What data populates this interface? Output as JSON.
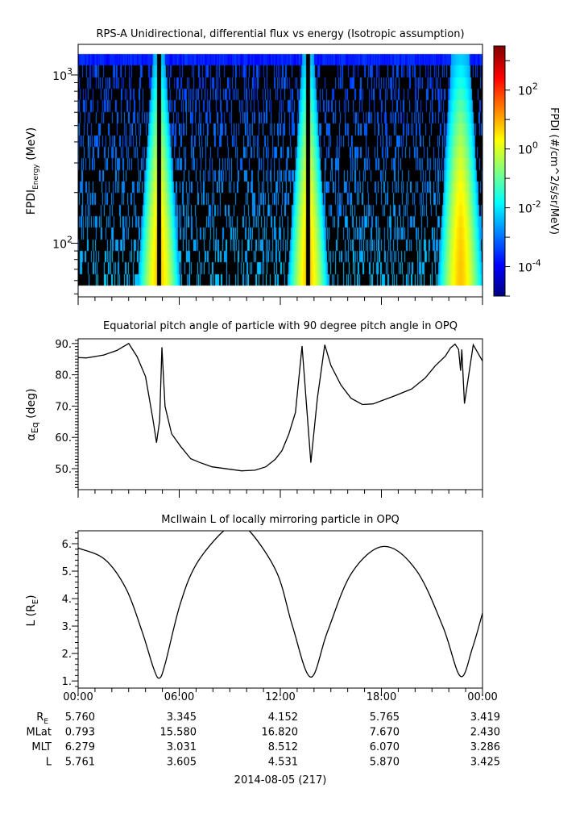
{
  "chart_data": [
    {
      "type": "heatmap",
      "title": "RPS-A Unidirectional, differential flux vs energy (Isotropic assumption)",
      "ylabel": "FPDI",
      "ylabel_sub": "Energy",
      "ylabel_unit": " (MeV)",
      "yscale": "log",
      "ylim": [
        48,
        1520
      ],
      "data_energy_range": [
        56,
        1330
      ],
      "energy_bins": 20,
      "yticks": [
        {
          "value": 1000,
          "base": "10",
          "exp": "3"
        },
        {
          "value": 100,
          "base": "10",
          "exp": "2"
        }
      ],
      "xlim_hours": [
        0,
        24
      ],
      "bands": [
        {
          "center_hours": 4.8,
          "gap": true,
          "halfwidth_hours": [
            0.35,
            1.25
          ],
          "peak_log_flux": 0.8
        },
        {
          "center_hours": 13.65,
          "gap": true,
          "halfwidth_hours": [
            0.35,
            1.2
          ],
          "peak_log_flux": 0.8
        },
        {
          "center_hours": 22.7,
          "gap": false,
          "halfwidth_hours": [
            0.55,
            1.35
          ],
          "peak_log_flux": 0.8
        }
      ],
      "background_log_flux": [
        -4.0,
        -2.4
      ],
      "colorbar": {
        "label": "FPDI (#/cm^2/s/sr/MeV)",
        "colormap": "jet",
        "log_range": [
          -5.0,
          3.5
        ],
        "ticks": [
          {
            "log": 2,
            "base": "10",
            "exp": "2"
          },
          {
            "log": 0,
            "base": "10",
            "exp": "0"
          },
          {
            "log": -2,
            "base": "10",
            "exp": "-2"
          },
          {
            "log": -4,
            "base": "10",
            "exp": "-4"
          }
        ]
      }
    },
    {
      "type": "line",
      "title": "Equatorial pitch angle of particle with 90 degree pitch angle in OPQ",
      "ylabel": "α",
      "ylabel_sub": "Eq",
      "ylabel_unit": " (deg)",
      "ylim": [
        43.3,
        91.5
      ],
      "yticks": [
        {
          "value": 90,
          "label": "90."
        },
        {
          "value": 80,
          "label": "80."
        },
        {
          "value": 70,
          "label": "70."
        },
        {
          "value": 60,
          "label": "60."
        },
        {
          "value": 50,
          "label": "50."
        }
      ],
      "x": [
        0,
        0.5,
        1.5,
        2.3,
        3.0,
        3.5,
        4.0,
        4.45,
        4.65,
        4.84,
        4.97,
        5.16,
        5.55,
        6.1,
        6.68,
        7.2,
        7.94,
        9.7,
        10.5,
        11.14,
        11.7,
        12.1,
        12.5,
        12.9,
        13.29,
        13.81,
        14.2,
        14.64,
        15.0,
        15.6,
        16.2,
        16.87,
        17.5,
        18.8,
        19.8,
        20.6,
        21.2,
        21.8,
        22.1,
        22.37,
        22.58,
        22.7,
        22.77,
        22.93,
        23.45,
        24.0
      ],
      "y": [
        85.5,
        85.4,
        86.3,
        87.8,
        90.0,
        85.8,
        79.4,
        65.4,
        58.3,
        65.4,
        88.8,
        69.9,
        61.1,
        57.0,
        53.2,
        52.0,
        50.6,
        49.3,
        49.5,
        50.6,
        53.0,
        55.8,
        61.0,
        68.0,
        89.2,
        51.9,
        72.5,
        89.6,
        83.0,
        76.7,
        72.5,
        70.5,
        70.7,
        73.3,
        75.5,
        79.0,
        82.9,
        86.0,
        88.6,
        89.8,
        88.1,
        81.3,
        88.1,
        70.8,
        89.6,
        84.4
      ]
    },
    {
      "type": "line",
      "title": "McIlwain L of locally mirroring particle in OPQ",
      "ylabel": "L (R",
      "ylabel_sub": "E",
      "ylabel_unit": ")",
      "ylim": [
        0.74,
        6.47
      ],
      "yticks": [
        {
          "value": 6,
          "label": "6."
        },
        {
          "value": 5,
          "label": "5."
        },
        {
          "value": 4,
          "label": "4."
        },
        {
          "value": 3,
          "label": "3."
        },
        {
          "value": 2,
          "label": "2."
        },
        {
          "value": 1,
          "label": "1."
        }
      ],
      "x": [
        0,
        1.58,
        2.85,
        3.8,
        4.45,
        4.81,
        5.16,
        6.04,
        7.0,
        8.59,
        9.4,
        10.2,
        11.8,
        12.73,
        13.8,
        14.8,
        16.24,
        18.15,
        20.06,
        21.65,
        22.69,
        23.4,
        24.0
      ],
      "y": [
        5.84,
        5.43,
        4.35,
        2.79,
        1.51,
        1.1,
        1.61,
        3.76,
        5.24,
        6.44,
        6.55,
        6.44,
        4.94,
        2.98,
        1.14,
        2.8,
        4.94,
        5.9,
        5.04,
        2.98,
        1.17,
        2.2,
        3.47
      ]
    }
  ],
  "time_axis": {
    "tick_hours": [
      0,
      6,
      12,
      18,
      24
    ],
    "labels": [
      "00:00",
      "06:00",
      "12:00",
      "18:00",
      "00:00"
    ]
  },
  "ephemeris": {
    "rows": [
      {
        "label": "R",
        "sub": "E",
        "values": [
          "5.760",
          "3.345",
          "4.152",
          "5.765",
          "3.419"
        ]
      },
      {
        "label": "MLat",
        "sub": "",
        "values": [
          "0.793",
          "15.580",
          "16.820",
          "7.670",
          "2.430"
        ]
      },
      {
        "label": "MLT",
        "sub": "",
        "values": [
          "6.279",
          "3.031",
          "8.512",
          "6.070",
          "3.286"
        ]
      },
      {
        "label": "L",
        "sub": "",
        "values": [
          "5.761",
          "3.605",
          "4.531",
          "5.870",
          "3.425"
        ]
      }
    ]
  },
  "date": "2014-08-05 (217)"
}
